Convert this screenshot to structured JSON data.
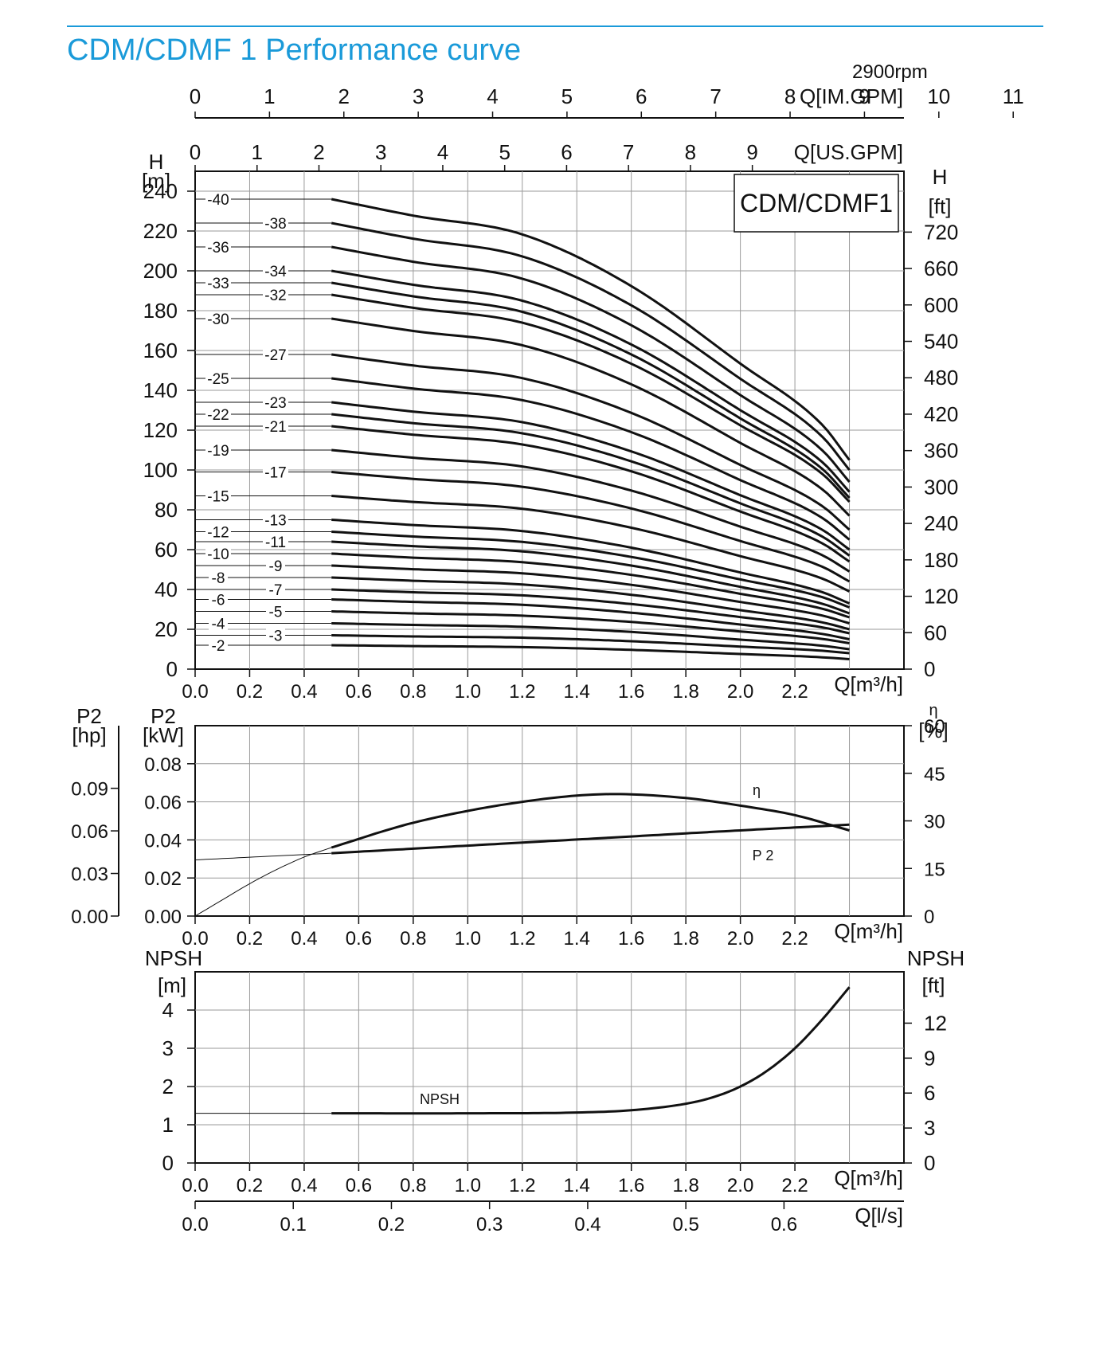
{
  "page": {
    "title": "CDM/CDMF 1 Performance curve",
    "accent_color": "#1a9ad9",
    "speed": "2900rpm"
  },
  "chart_data": [
    {
      "type": "line",
      "name": "head",
      "model_label": "CDM/CDMF1",
      "xlabel": "Q[m³/h]",
      "ylabel_left": "H [m]",
      "ylabel_right": "H [ft]",
      "x_secondary_axes": [
        {
          "label": "Q[IM.GPM]",
          "ticks": [
            "0",
            "1",
            "2",
            "3",
            "4",
            "5",
            "6",
            "7",
            "8",
            "9",
            "10",
            "11"
          ]
        },
        {
          "label": "Q[US.GPM]",
          "ticks": [
            "0",
            "1",
            "2",
            "3",
            "4",
            "5",
            "6",
            "7",
            "8",
            "9"
          ]
        }
      ],
      "xlim": [
        0,
        2.6
      ],
      "xticks": [
        "0.0",
        "0.2",
        "0.4",
        "0.6",
        "0.8",
        "1.0",
        "1.2",
        "1.4",
        "1.6",
        "1.8",
        "2.0",
        "2.2"
      ],
      "ylim": [
        0,
        250
      ],
      "yticks": [
        0,
        20,
        40,
        60,
        80,
        100,
        120,
        140,
        160,
        180,
        200,
        220,
        240
      ],
      "y_right_ticks": [
        0,
        60,
        120,
        180,
        240,
        300,
        360,
        420,
        480,
        540,
        600,
        660,
        720
      ],
      "grid": true,
      "curve_shape": {
        "x": [
          0.5,
          0.8,
          1.2,
          1.6,
          2.0,
          2.3,
          2.4
        ],
        "rel": [
          1.0,
          0.965,
          0.925,
          0.815,
          0.65,
          0.52,
          0.445
        ]
      },
      "series": [
        {
          "name": "-40",
          "h0": 236,
          "h_end": 105
        },
        {
          "name": "-38",
          "h0": 224,
          "h_end": 100
        },
        {
          "name": "-36",
          "h0": 212,
          "h_end": 94
        },
        {
          "name": "-34",
          "h0": 200,
          "h_end": 89
        },
        {
          "name": "-33",
          "h0": 194,
          "h_end": 86
        },
        {
          "name": "-32",
          "h0": 188,
          "h_end": 84
        },
        {
          "name": "-30",
          "h0": 176,
          "h_end": 77
        },
        {
          "name": "-27",
          "h0": 158,
          "h_end": 70
        },
        {
          "name": "-25",
          "h0": 146,
          "h_end": 65
        },
        {
          "name": "-23",
          "h0": 134,
          "h_end": 60
        },
        {
          "name": "-22",
          "h0": 128,
          "h_end": 57
        },
        {
          "name": "-21",
          "h0": 122,
          "h_end": 54
        },
        {
          "name": "-19",
          "h0": 110,
          "h_end": 49
        },
        {
          "name": "-17",
          "h0": 99,
          "h_end": 44
        },
        {
          "name": "-15",
          "h0": 87,
          "h_end": 39
        },
        {
          "name": "-13",
          "h0": 75,
          "h_end": 33
        },
        {
          "name": "-12",
          "h0": 69,
          "h_end": 31
        },
        {
          "name": "-11",
          "h0": 64,
          "h_end": 28
        },
        {
          "name": "-10",
          "h0": 58,
          "h_end": 26
        },
        {
          "name": "-9",
          "h0": 52,
          "h_end": 23
        },
        {
          "name": "-8",
          "h0": 46,
          "h_end": 20
        },
        {
          "name": "-7",
          "h0": 40,
          "h_end": 18
        },
        {
          "name": "-6",
          "h0": 35,
          "h_end": 15
        },
        {
          "name": "-5",
          "h0": 29,
          "h_end": 13
        },
        {
          "name": "-4",
          "h0": 23,
          "h_end": 10
        },
        {
          "name": "-3",
          "h0": 17,
          "h_end": 8
        },
        {
          "name": "-2",
          "h0": 12,
          "h_end": 5
        }
      ]
    },
    {
      "type": "line",
      "name": "power-efficiency",
      "xlabel": "Q[m³/h]",
      "ylabel_hp": "P2 [hp]",
      "ylabel_kw": "P2 [kW]",
      "ylabel_right": "η [%]",
      "xlim": [
        0,
        2.6
      ],
      "xticks": [
        "0.0",
        "0.2",
        "0.4",
        "0.6",
        "0.8",
        "1.0",
        "1.2",
        "1.4",
        "1.6",
        "1.8",
        "2.0",
        "2.2"
      ],
      "ylim_kw": [
        0,
        0.1
      ],
      "yticks_kw": [
        "0.00",
        "0.02",
        "0.04",
        "0.06",
        "0.08"
      ],
      "yticks_hp": [
        "0.00",
        "0.03",
        "0.06",
        "0.09"
      ],
      "yticks_eta": [
        "0",
        "15",
        "30",
        "45",
        "60"
      ],
      "grid": true,
      "series": [
        {
          "name": "η",
          "x": [
            0.5,
            0.8,
            1.2,
            1.5,
            1.8,
            2.0,
            2.2,
            2.4
          ],
          "y_kw": [
            0.036,
            0.049,
            0.06,
            0.064,
            0.062,
            0.058,
            0.053,
            0.045
          ]
        },
        {
          "name": "P 2",
          "x": [
            0.5,
            1.0,
            1.5,
            2.0,
            2.4
          ],
          "y_kw": [
            0.033,
            0.037,
            0.041,
            0.045,
            0.048
          ]
        }
      ],
      "extrapolated": [
        {
          "series": "η",
          "x": [
            0,
            0.1,
            0.2,
            0.3,
            0.4,
            0.5
          ],
          "y_kw": [
            0,
            0.0085,
            0.017,
            0.0245,
            0.031,
            0.036
          ]
        },
        {
          "series": "P 2",
          "x": [
            0,
            0.5
          ],
          "y_kw": [
            0.0295,
            0.033
          ]
        }
      ]
    },
    {
      "type": "line",
      "name": "npsh",
      "xlabel": "Q[m³/h]",
      "ylabel_left": "NPSH [m]",
      "ylabel_right": "NPSH [ft]",
      "xlim": [
        0,
        2.6
      ],
      "xticks": [
        "0.0",
        "0.2",
        "0.4",
        "0.6",
        "0.8",
        "1.0",
        "1.2",
        "1.4",
        "1.6",
        "1.8",
        "2.0",
        "2.2"
      ],
      "ylim": [
        0,
        5
      ],
      "yticks": [
        0,
        1,
        2,
        3,
        4
      ],
      "y_right_ticks": [
        0,
        3,
        6,
        9,
        12
      ],
      "grid": true,
      "series": [
        {
          "name": "NPSH",
          "x": [
            0.5,
            1.0,
            1.4,
            1.6,
            1.8,
            1.9,
            2.0,
            2.1,
            2.2,
            2.3,
            2.4
          ],
          "y": [
            1.3,
            1.3,
            1.32,
            1.38,
            1.55,
            1.72,
            2.0,
            2.42,
            3.0,
            3.75,
            4.6
          ]
        }
      ],
      "x_secondary_axis": {
        "label": "Q[l/s]",
        "ticks": [
          "0.0",
          "0.1",
          "0.2",
          "0.3",
          "0.4",
          "0.5",
          "0.6"
        ]
      }
    }
  ]
}
